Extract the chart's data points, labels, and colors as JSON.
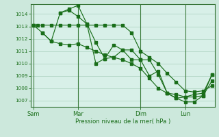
{
  "background_color": "#cce8dc",
  "plot_bg_color": "#d8f0e8",
  "grid_color": "#aacfbc",
  "line_color": "#1a6e1a",
  "ylabel_text": "Pression niveau de la mer( hPa )",
  "ylim": [
    1006.5,
    1014.8
  ],
  "yticks": [
    1007,
    1008,
    1009,
    1010,
    1011,
    1012,
    1013,
    1014
  ],
  "xtick_labels": [
    "Sam",
    "Mar",
    "Dim",
    "Lun"
  ],
  "xtick_positions": [
    0,
    5,
    12,
    17
  ],
  "vline_positions": [
    0,
    5,
    12,
    17
  ],
  "xlim": [
    -0.3,
    20.3
  ],
  "series1_x": [
    0,
    0.5,
    1,
    2,
    3,
    4,
    5,
    6,
    7,
    8,
    9,
    10,
    11,
    12,
    13,
    14,
    15,
    16,
    17,
    18,
    19,
    20
  ],
  "series1_y": [
    1013.1,
    1013.1,
    1013.1,
    1013.1,
    1013.1,
    1013.1,
    1013.1,
    1013.1,
    1013.1,
    1013.1,
    1013.1,
    1013.1,
    1012.5,
    1011.0,
    1010.5,
    1010.0,
    1009.2,
    1008.5,
    1007.8,
    1007.7,
    1007.8,
    1008.2
  ],
  "series2_x": [
    0,
    1,
    2,
    3,
    4,
    5,
    6,
    7,
    8,
    9,
    10,
    11,
    12,
    13,
    14,
    15,
    16,
    17,
    18,
    19,
    20
  ],
  "series2_y": [
    1013.1,
    1012.5,
    1011.8,
    1011.6,
    1011.5,
    1011.6,
    1011.3,
    1011.0,
    1010.7,
    1010.5,
    1010.3,
    1010.0,
    1009.6,
    1008.8,
    1008.0,
    1007.6,
    1007.5,
    1007.3,
    1007.3,
    1007.4,
    1009.1
  ],
  "series3_x": [
    1,
    2,
    3,
    4,
    5,
    6,
    7,
    8,
    9,
    10,
    11,
    12,
    13,
    14,
    15,
    16,
    17,
    18,
    19,
    20
  ],
  "series3_y": [
    1012.5,
    1011.8,
    1014.1,
    1014.3,
    1013.8,
    1013.2,
    1011.7,
    1010.4,
    1010.5,
    1011.1,
    1011.1,
    1010.3,
    1010.3,
    1009.1,
    1007.6,
    1007.2,
    1006.9,
    1006.9,
    1007.4,
    1008.6
  ],
  "series4_x": [
    3,
    4,
    5,
    6,
    7,
    8,
    9,
    10,
    11,
    12,
    13,
    14,
    15,
    16,
    17,
    18,
    19,
    20
  ],
  "series4_y": [
    1014.1,
    1014.4,
    1014.7,
    1013.2,
    1010.0,
    1010.4,
    1011.5,
    1011.1,
    1010.3,
    1010.3,
    1009.0,
    1009.4,
    1007.6,
    1007.2,
    1007.3,
    1007.5,
    1007.6,
    1009.1
  ]
}
